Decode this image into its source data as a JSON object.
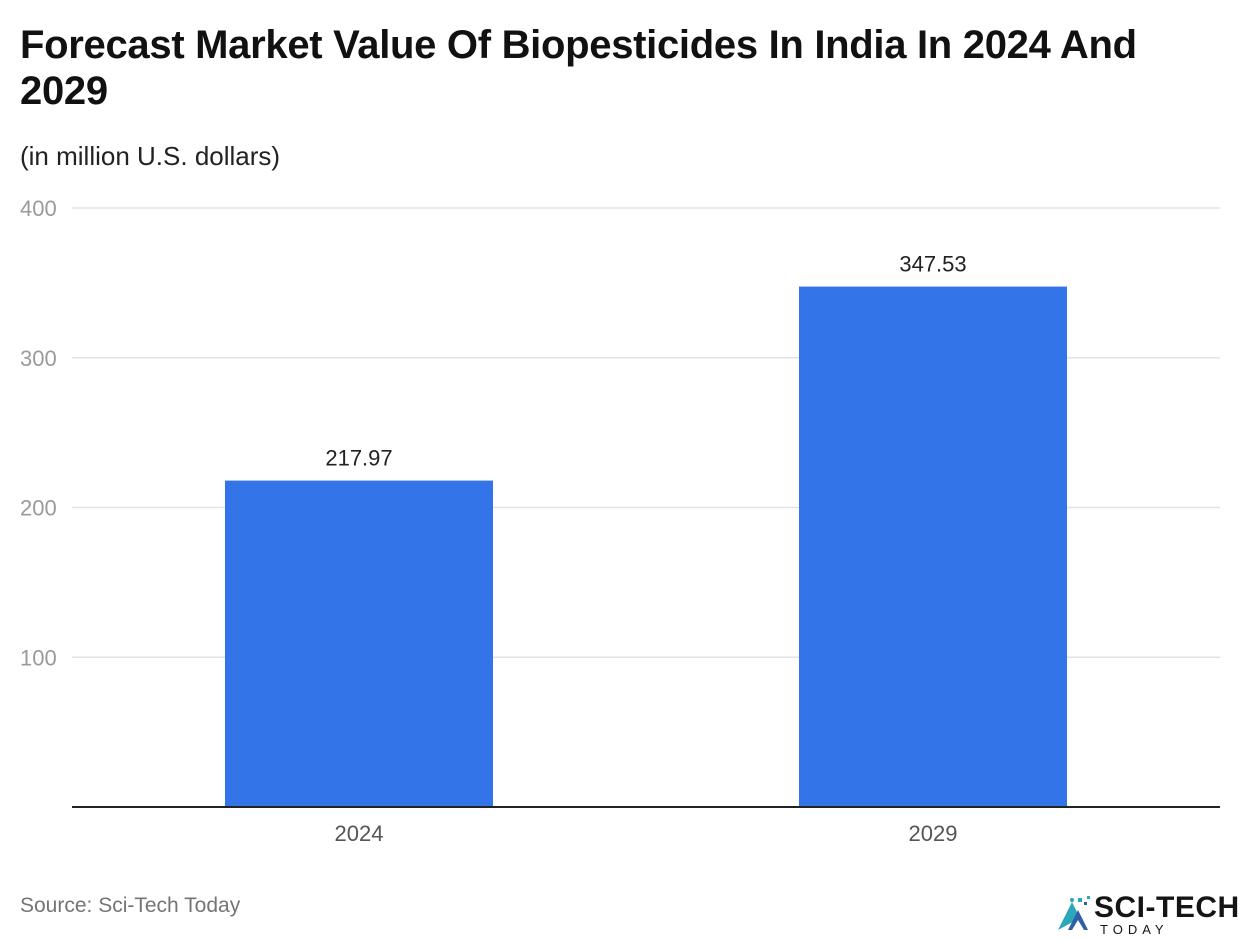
{
  "chart_data": {
    "type": "bar",
    "title": "Forecast Market Value Of Biopesticides In India In 2024 And 2029",
    "subtitle": "(in million U.S. dollars)",
    "categories": [
      "2024",
      "2029"
    ],
    "values": [
      217.97,
      347.53
    ],
    "data_labels": [
      "217.97",
      "347.53"
    ],
    "ylim": [
      0,
      400
    ],
    "yticks": [
      100,
      200,
      300,
      400
    ],
    "grid": true,
    "bar_color": "#3375e8",
    "grid_color": "#e2e2e2",
    "axis_color": "#222222"
  },
  "source": "Source: Sci-Tech Today",
  "logo": {
    "text": "SCI-TECH",
    "subtext": "TODAY",
    "icon": "sci-tech-today-logo-icon"
  }
}
